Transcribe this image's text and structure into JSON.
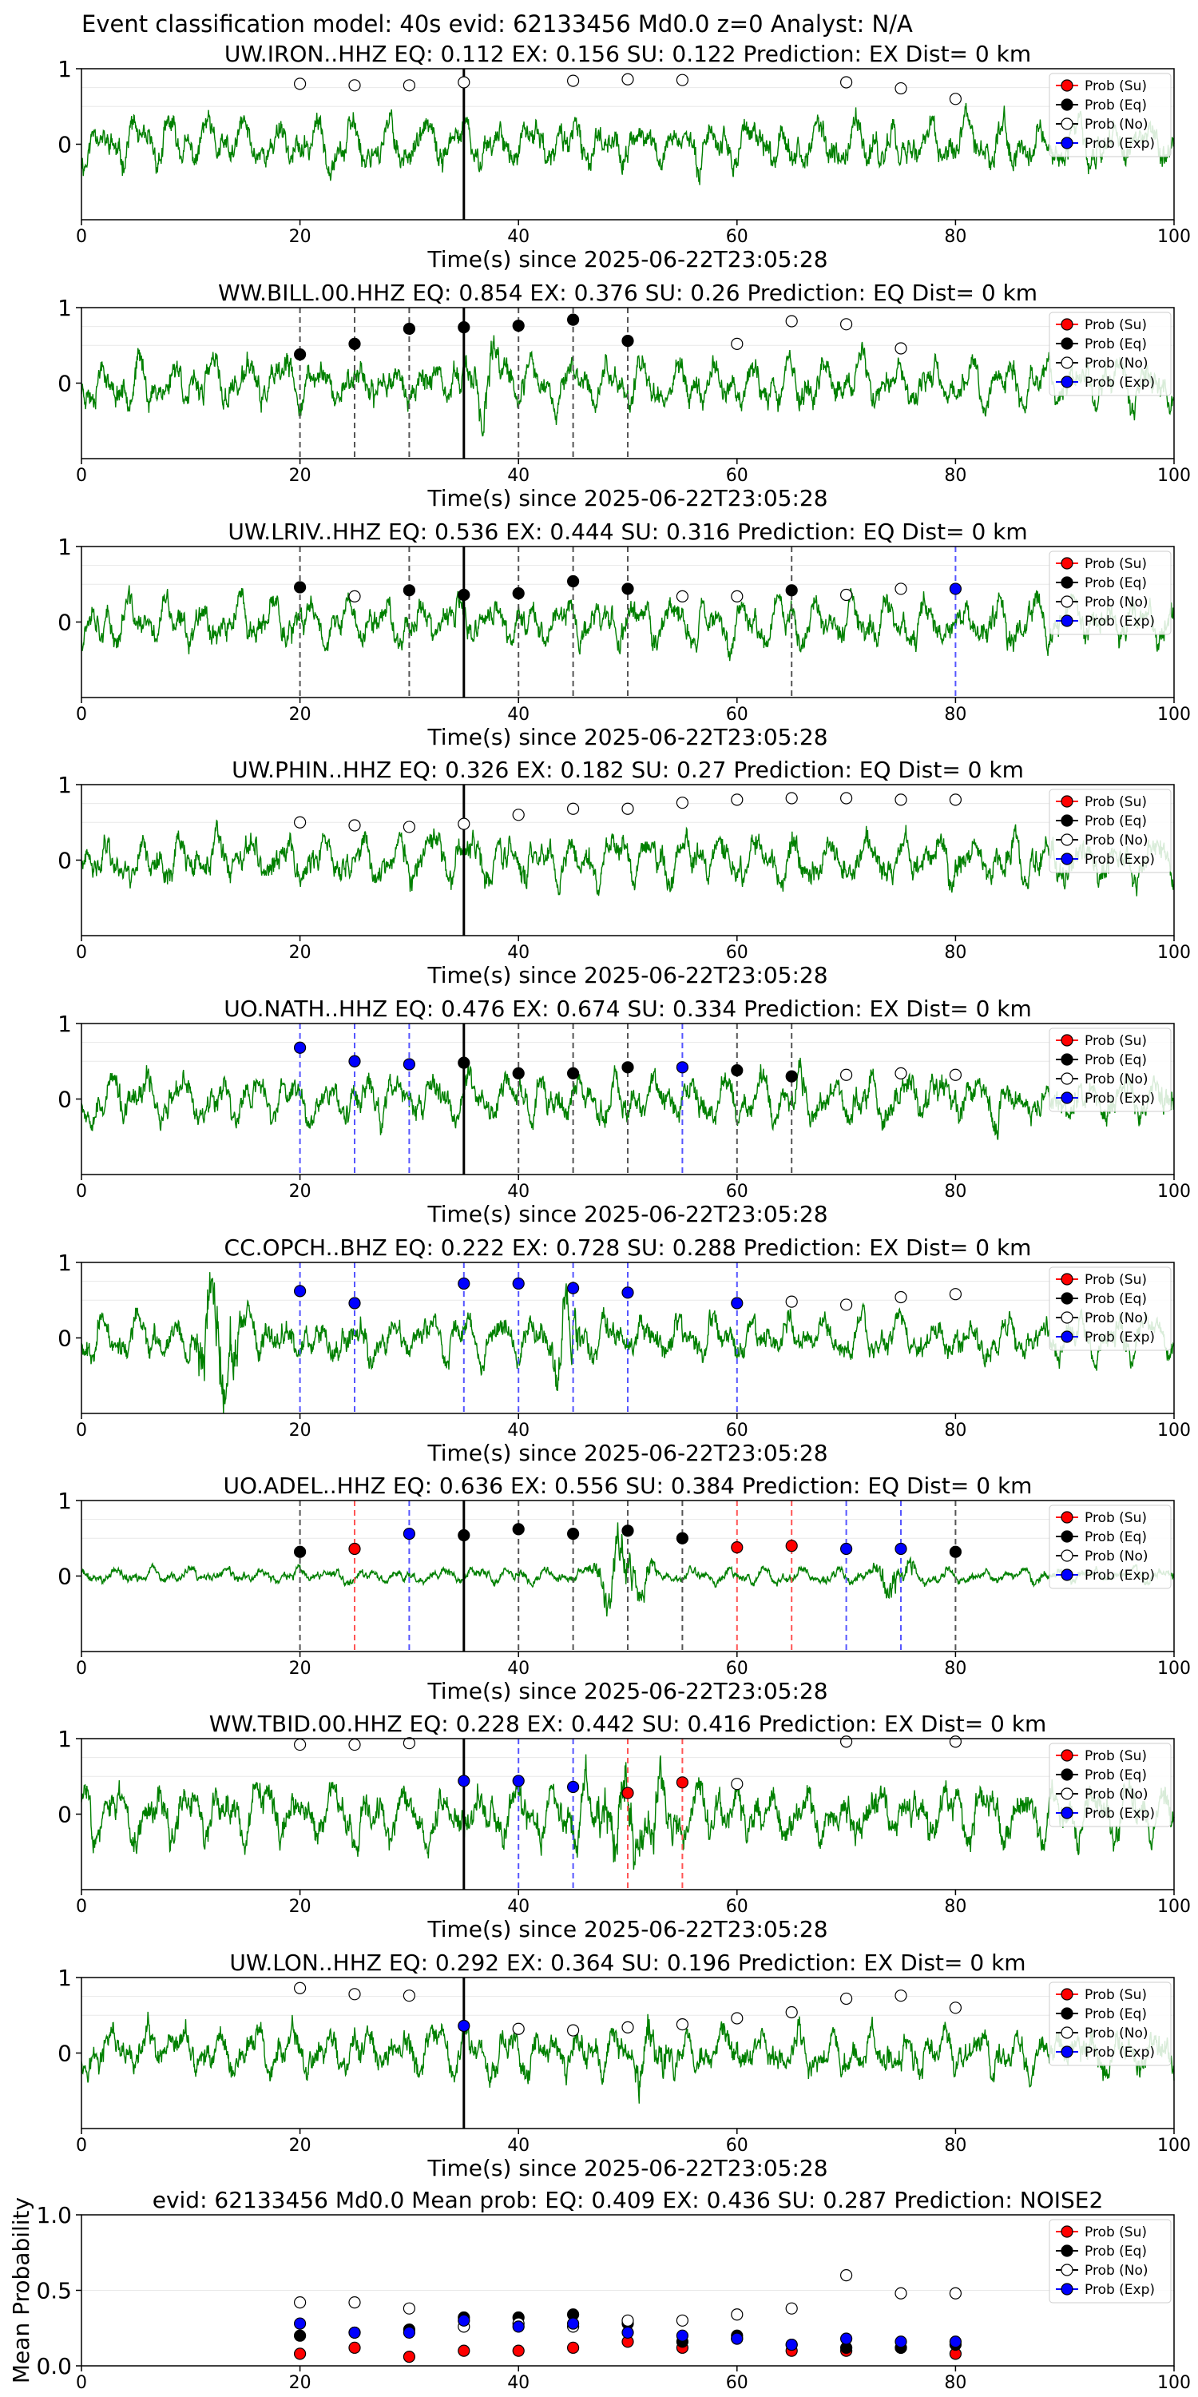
{
  "figure": {
    "title": "Event classification model: 40s evid: 62133456 Md0.0 z=0 Analyst: N/A",
    "xlabel": "Time(s) since 2025-06-22T23:05:28",
    "legend": [
      "Prob (Su)",
      "Prob (Eq)",
      "Prob (No)",
      "Prob (Exp)"
    ],
    "colors": {
      "su": "#ff0000",
      "eq": "#000000",
      "no": "#ffffff",
      "exp": "#0000ff",
      "trace": "#008000",
      "onset": "#000000"
    }
  },
  "chart_data": [
    {
      "type": "line",
      "title": "UW.IRON..HHZ   EQ: 0.112  EX: 0.156  SU: 0.122   Prediction: EX    Dist= 0 km",
      "xlim": [
        0,
        100
      ],
      "ylim": [
        -1,
        1
      ],
      "yticks": [
        "1",
        "0"
      ],
      "xticks": [
        "0",
        "20",
        "40",
        "60",
        "80",
        "100"
      ],
      "onset": 35,
      "seed": 11,
      "burst": null,
      "points": [
        {
          "t": 20,
          "p": 0.8,
          "c": "no"
        },
        {
          "t": 25,
          "p": 0.78,
          "c": "no"
        },
        {
          "t": 30,
          "p": 0.78,
          "c": "no"
        },
        {
          "t": 35,
          "p": 0.82,
          "c": "no"
        },
        {
          "t": 45,
          "p": 0.84,
          "c": "no"
        },
        {
          "t": 50,
          "p": 0.86,
          "c": "no"
        },
        {
          "t": 55,
          "p": 0.85,
          "c": "no"
        },
        {
          "t": 70,
          "p": 0.82,
          "c": "no"
        },
        {
          "t": 75,
          "p": 0.74,
          "c": "no"
        },
        {
          "t": 80,
          "p": 0.6,
          "c": "no"
        }
      ]
    },
    {
      "type": "line",
      "title": "WW.BILL.00.HHZ   EQ: 0.854  EX: 0.376  SU: 0.26   Prediction: EQ    Dist= 0 km",
      "xlim": [
        0,
        100
      ],
      "ylim": [
        -1,
        1
      ],
      "yticks": [
        "1",
        "0"
      ],
      "xticks": [
        "0",
        "20",
        "40",
        "60",
        "80",
        "100"
      ],
      "onset": 35,
      "seed": 23,
      "burst": [
        35,
        40,
        1.6
      ],
      "points": [
        {
          "t": 20,
          "p": 0.38,
          "c": "eq"
        },
        {
          "t": 25,
          "p": 0.52,
          "c": "eq"
        },
        {
          "t": 30,
          "p": 0.72,
          "c": "eq"
        },
        {
          "t": 35,
          "p": 0.74,
          "c": "eq"
        },
        {
          "t": 40,
          "p": 0.76,
          "c": "eq"
        },
        {
          "t": 45,
          "p": 0.84,
          "c": "eq"
        },
        {
          "t": 50,
          "p": 0.56,
          "c": "eq"
        },
        {
          "t": 60,
          "p": 0.52,
          "c": "no"
        },
        {
          "t": 65,
          "p": 0.82,
          "c": "no"
        },
        {
          "t": 70,
          "p": 0.78,
          "c": "no"
        },
        {
          "t": 75,
          "p": 0.46,
          "c": "no"
        }
      ]
    },
    {
      "type": "line",
      "title": "UW.LRIV..HHZ   EQ: 0.536  EX: 0.444  SU: 0.316   Prediction: EQ    Dist= 0 km",
      "xlim": [
        0,
        100
      ],
      "ylim": [
        -1,
        1
      ],
      "yticks": [
        "1",
        "0"
      ],
      "xticks": [
        "0",
        "20",
        "40",
        "60",
        "80",
        "100"
      ],
      "onset": 35,
      "seed": 37,
      "burst": null,
      "points": [
        {
          "t": 20,
          "p": 0.46,
          "c": "eq"
        },
        {
          "t": 25,
          "p": 0.34,
          "c": "no"
        },
        {
          "t": 30,
          "p": 0.42,
          "c": "eq"
        },
        {
          "t": 35,
          "p": 0.36,
          "c": "eq"
        },
        {
          "t": 40,
          "p": 0.38,
          "c": "eq"
        },
        {
          "t": 45,
          "p": 0.54,
          "c": "eq"
        },
        {
          "t": 50,
          "p": 0.44,
          "c": "eq"
        },
        {
          "t": 55,
          "p": 0.34,
          "c": "no"
        },
        {
          "t": 60,
          "p": 0.34,
          "c": "no"
        },
        {
          "t": 65,
          "p": 0.42,
          "c": "eq"
        },
        {
          "t": 70,
          "p": 0.36,
          "c": "no"
        },
        {
          "t": 75,
          "p": 0.44,
          "c": "no"
        },
        {
          "t": 80,
          "p": 0.44,
          "c": "exp"
        }
      ]
    },
    {
      "type": "line",
      "title": "UW.PHIN..HHZ   EQ: 0.326  EX: 0.182  SU: 0.27   Prediction: EQ    Dist= 0 km",
      "xlim": [
        0,
        100
      ],
      "ylim": [
        -1,
        1
      ],
      "yticks": [
        "1",
        "0"
      ],
      "xticks": [
        "0",
        "20",
        "40",
        "60",
        "80",
        "100"
      ],
      "onset": 35,
      "seed": 41,
      "burst": null,
      "points": [
        {
          "t": 20,
          "p": 0.5,
          "c": "no"
        },
        {
          "t": 25,
          "p": 0.46,
          "c": "no"
        },
        {
          "t": 30,
          "p": 0.44,
          "c": "no"
        },
        {
          "t": 35,
          "p": 0.48,
          "c": "no"
        },
        {
          "t": 40,
          "p": 0.6,
          "c": "no"
        },
        {
          "t": 45,
          "p": 0.68,
          "c": "no"
        },
        {
          "t": 50,
          "p": 0.68,
          "c": "no"
        },
        {
          "t": 55,
          "p": 0.76,
          "c": "no"
        },
        {
          "t": 60,
          "p": 0.8,
          "c": "no"
        },
        {
          "t": 65,
          "p": 0.82,
          "c": "no"
        },
        {
          "t": 70,
          "p": 0.82,
          "c": "no"
        },
        {
          "t": 75,
          "p": 0.8,
          "c": "no"
        },
        {
          "t": 80,
          "p": 0.8,
          "c": "no"
        }
      ]
    },
    {
      "type": "line",
      "title": "UO.NATH..HHZ   EQ: 0.476  EX: 0.674  SU: 0.334   Prediction: EX    Dist= 0 km",
      "xlim": [
        0,
        100
      ],
      "ylim": [
        -1,
        1
      ],
      "yticks": [
        "1",
        "0"
      ],
      "xticks": [
        "0",
        "20",
        "40",
        "60",
        "80",
        "100"
      ],
      "onset": 35,
      "seed": 53,
      "burst": null,
      "points": [
        {
          "t": 20,
          "p": 0.68,
          "c": "exp"
        },
        {
          "t": 25,
          "p": 0.5,
          "c": "exp"
        },
        {
          "t": 30,
          "p": 0.46,
          "c": "exp"
        },
        {
          "t": 35,
          "p": 0.48,
          "c": "eq"
        },
        {
          "t": 40,
          "p": 0.34,
          "c": "eq"
        },
        {
          "t": 45,
          "p": 0.34,
          "c": "eq"
        },
        {
          "t": 50,
          "p": 0.42,
          "c": "eq"
        },
        {
          "t": 55,
          "p": 0.42,
          "c": "exp"
        },
        {
          "t": 60,
          "p": 0.38,
          "c": "eq"
        },
        {
          "t": 65,
          "p": 0.3,
          "c": "eq"
        },
        {
          "t": 70,
          "p": 0.32,
          "c": "no"
        },
        {
          "t": 75,
          "p": 0.34,
          "c": "no"
        },
        {
          "t": 80,
          "p": 0.32,
          "c": "no"
        }
      ]
    },
    {
      "type": "line",
      "title": "CC.OPCH..BHZ   EQ: 0.222  EX: 0.728  SU: 0.288   Prediction: EX    Dist= 0 km",
      "xlim": [
        0,
        100
      ],
      "ylim": [
        -1,
        1
      ],
      "yticks": [
        "1",
        "0"
      ],
      "xticks": [
        "0",
        "20",
        "40",
        "60",
        "80",
        "100"
      ],
      "onset": null,
      "seed": 67,
      "burst": [
        10,
        15,
        3.0
      ],
      "burst2": [
        43,
        46,
        2.4
      ],
      "amp": 0.35,
      "points": [
        {
          "t": 20,
          "p": 0.62,
          "c": "exp"
        },
        {
          "t": 25,
          "p": 0.46,
          "c": "exp"
        },
        {
          "t": 35,
          "p": 0.72,
          "c": "exp"
        },
        {
          "t": 40,
          "p": 0.72,
          "c": "exp"
        },
        {
          "t": 45,
          "p": 0.66,
          "c": "exp"
        },
        {
          "t": 50,
          "p": 0.6,
          "c": "exp"
        },
        {
          "t": 60,
          "p": 0.46,
          "c": "exp"
        },
        {
          "t": 65,
          "p": 0.48,
          "c": "no"
        },
        {
          "t": 70,
          "p": 0.44,
          "c": "no"
        },
        {
          "t": 75,
          "p": 0.54,
          "c": "no"
        },
        {
          "t": 80,
          "p": 0.58,
          "c": "no"
        }
      ]
    },
    {
      "type": "line",
      "title": "UO.ADEL..HHZ   EQ: 0.636  EX: 0.556  SU: 0.384   Prediction: EQ    Dist= 0 km",
      "xlim": [
        0,
        100
      ],
      "ylim": [
        -1,
        1
      ],
      "yticks": [
        "1",
        "0"
      ],
      "xticks": [
        "0",
        "20",
        "40",
        "60",
        "80",
        "100"
      ],
      "onset": 35,
      "seed": 71,
      "burst": [
        46,
        53,
        5.0
      ],
      "burst2": [
        72,
        77,
        3.5
      ],
      "amp": 0.12,
      "points": [
        {
          "t": 20,
          "p": 0.32,
          "c": "eq"
        },
        {
          "t": 25,
          "p": 0.36,
          "c": "su"
        },
        {
          "t": 30,
          "p": 0.56,
          "c": "exp"
        },
        {
          "t": 35,
          "p": 0.54,
          "c": "eq"
        },
        {
          "t": 40,
          "p": 0.62,
          "c": "eq"
        },
        {
          "t": 45,
          "p": 0.56,
          "c": "eq"
        },
        {
          "t": 50,
          "p": 0.6,
          "c": "eq"
        },
        {
          "t": 55,
          "p": 0.5,
          "c": "eq"
        },
        {
          "t": 60,
          "p": 0.38,
          "c": "su"
        },
        {
          "t": 65,
          "p": 0.4,
          "c": "su"
        },
        {
          "t": 70,
          "p": 0.36,
          "c": "exp"
        },
        {
          "t": 75,
          "p": 0.36,
          "c": "exp"
        },
        {
          "t": 80,
          "p": 0.32,
          "c": "eq"
        }
      ]
    },
    {
      "type": "line",
      "title": "WW.TBID.00.HHZ   EQ: 0.228  EX: 0.442  SU: 0.416   Prediction: EX    Dist= 0 km",
      "xlim": [
        0,
        100
      ],
      "ylim": [
        -1,
        1
      ],
      "yticks": [
        "1",
        "0"
      ],
      "xticks": [
        "0",
        "20",
        "40",
        "60",
        "80",
        "100"
      ],
      "onset": 35,
      "seed": 83,
      "burst": [
        44,
        55,
        1.8
      ],
      "amp": 0.45,
      "points": [
        {
          "t": 20,
          "p": 0.92,
          "c": "no"
        },
        {
          "t": 25,
          "p": 0.92,
          "c": "no"
        },
        {
          "t": 30,
          "p": 0.94,
          "c": "no"
        },
        {
          "t": 35,
          "p": 0.44,
          "c": "exp"
        },
        {
          "t": 40,
          "p": 0.44,
          "c": "exp"
        },
        {
          "t": 45,
          "p": 0.36,
          "c": "exp"
        },
        {
          "t": 50,
          "p": 0.28,
          "c": "su"
        },
        {
          "t": 55,
          "p": 0.42,
          "c": "su"
        },
        {
          "t": 60,
          "p": 0.4,
          "c": "no"
        },
        {
          "t": 70,
          "p": 0.96,
          "c": "no"
        },
        {
          "t": 80,
          "p": 0.96,
          "c": "no"
        }
      ]
    },
    {
      "type": "line",
      "title": "UW.LON..HHZ   EQ: 0.292  EX: 0.364  SU: 0.196   Prediction: EX    Dist= 0 km",
      "xlim": [
        0,
        100
      ],
      "ylim": [
        -1,
        1
      ],
      "yticks": [
        "1",
        "0"
      ],
      "xticks": [
        "0",
        "20",
        "40",
        "60",
        "80",
        "100"
      ],
      "onset": 35,
      "seed": 97,
      "burst": [
        50,
        54,
        1.6
      ],
      "points": [
        {
          "t": 20,
          "p": 0.86,
          "c": "no"
        },
        {
          "t": 25,
          "p": 0.78,
          "c": "no"
        },
        {
          "t": 30,
          "p": 0.76,
          "c": "no"
        },
        {
          "t": 35,
          "p": 0.36,
          "c": "exp"
        },
        {
          "t": 40,
          "p": 0.32,
          "c": "no"
        },
        {
          "t": 45,
          "p": 0.3,
          "c": "no"
        },
        {
          "t": 50,
          "p": 0.34,
          "c": "no"
        },
        {
          "t": 55,
          "p": 0.38,
          "c": "no"
        },
        {
          "t": 60,
          "p": 0.46,
          "c": "no"
        },
        {
          "t": 65,
          "p": 0.54,
          "c": "no"
        },
        {
          "t": 70,
          "p": 0.72,
          "c": "no"
        },
        {
          "t": 75,
          "p": 0.76,
          "c": "no"
        },
        {
          "t": 80,
          "p": 0.6,
          "c": "no"
        }
      ]
    },
    {
      "type": "scatter",
      "title": "evid: 62133456  Md0.0   Mean prob:    EQ: 0.409  EX: 0.436  SU: 0.287   Prediction: NOISE2",
      "ylabel": "Mean Probability",
      "xlim": [
        0,
        100
      ],
      "ylim": [
        0,
        1
      ],
      "yticks": [
        "0.0",
        "0.5",
        "1.0"
      ],
      "xticks": [
        "0",
        "20",
        "40",
        "60",
        "80",
        "100"
      ],
      "x": [
        20,
        25,
        30,
        35,
        40,
        45,
        50,
        55,
        60,
        65,
        70,
        75,
        80
      ],
      "series": [
        {
          "name": "Prob (Su)",
          "key": "su",
          "values": [
            0.08,
            0.12,
            0.06,
            0.1,
            0.1,
            0.12,
            0.16,
            0.12,
            0.18,
            0.1,
            0.1,
            0.12,
            0.08
          ]
        },
        {
          "name": "Prob (Eq)",
          "key": "eq",
          "values": [
            0.2,
            0.22,
            0.24,
            0.32,
            0.32,
            0.34,
            0.28,
            0.16,
            0.2,
            0.14,
            0.12,
            0.12,
            0.14
          ]
        },
        {
          "name": "Prob (No)",
          "key": "no",
          "values": [
            0.42,
            0.42,
            0.38,
            0.26,
            0.28,
            0.26,
            0.3,
            0.3,
            0.34,
            0.38,
            0.6,
            0.48,
            0.48
          ]
        },
        {
          "name": "Prob (Exp)",
          "key": "exp",
          "values": [
            0.28,
            0.22,
            0.22,
            0.3,
            0.26,
            0.28,
            0.22,
            0.2,
            0.18,
            0.14,
            0.18,
            0.16,
            0.16
          ]
        }
      ]
    }
  ]
}
